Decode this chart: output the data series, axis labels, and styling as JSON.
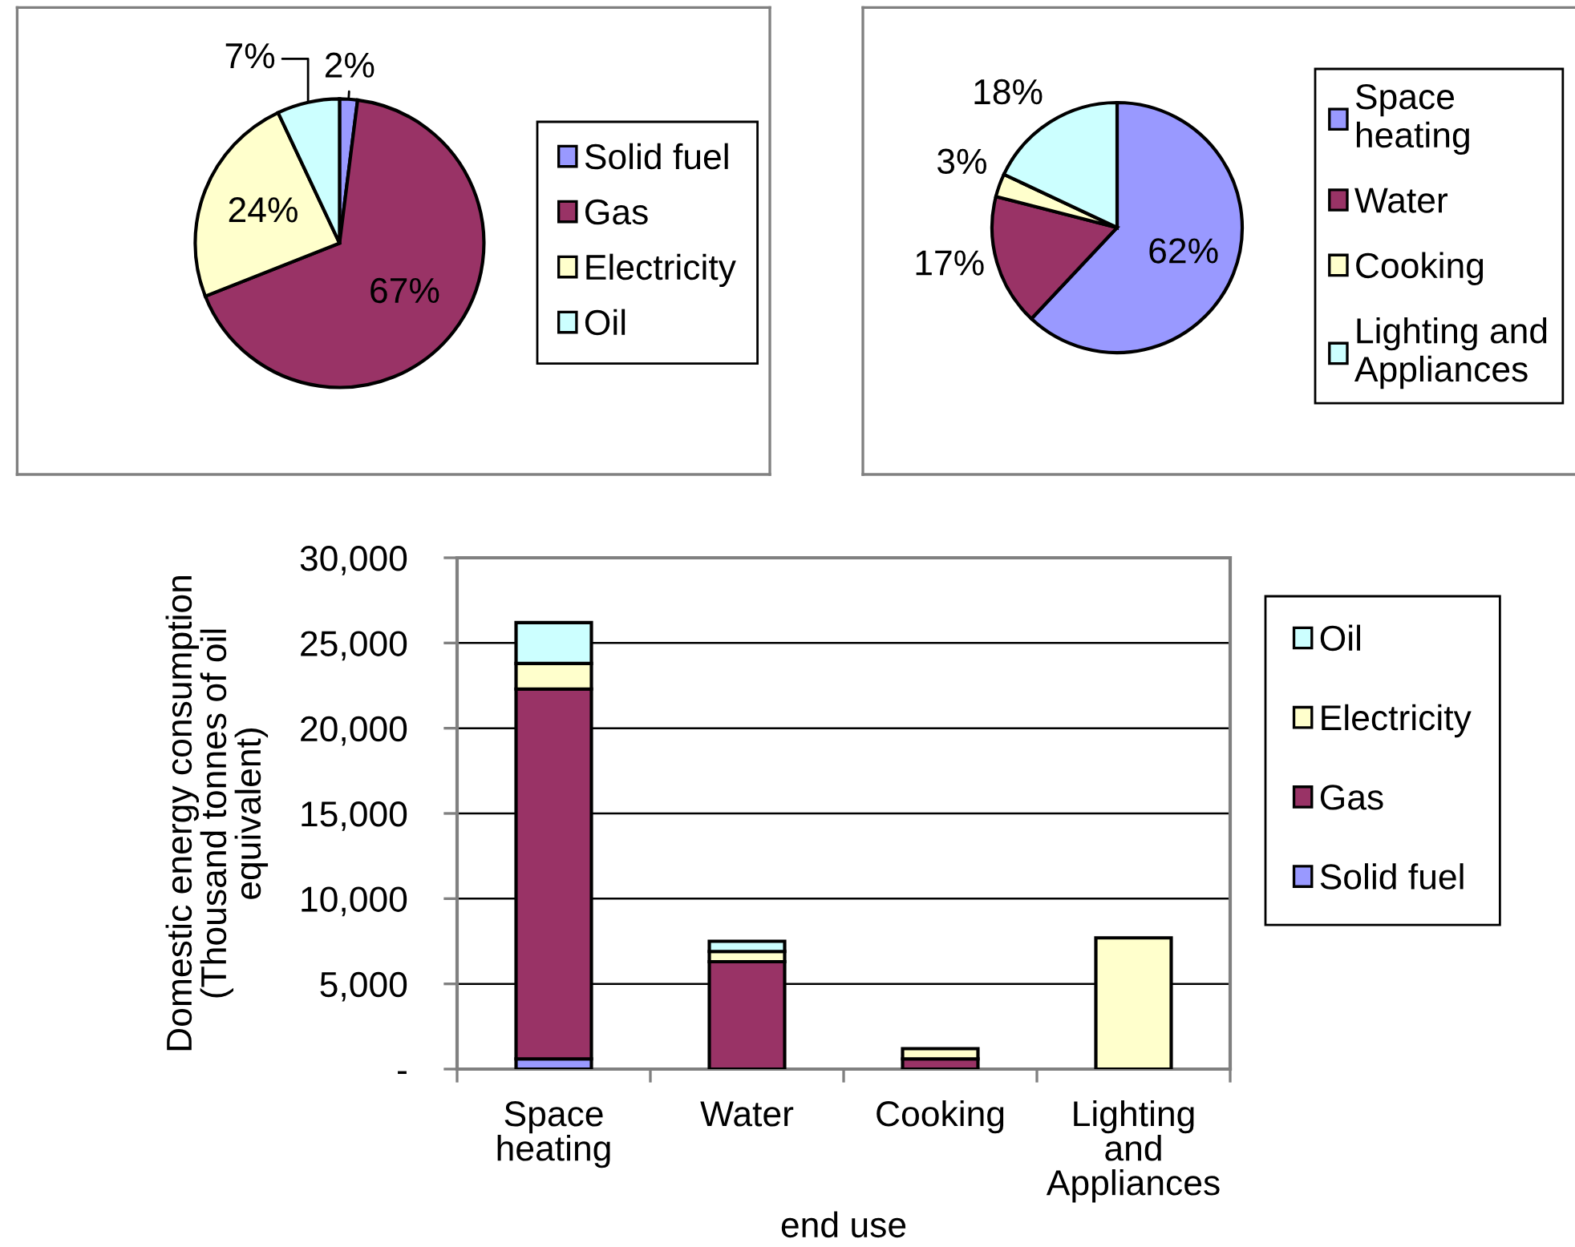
{
  "chart_data": [
    {
      "type": "pie",
      "categories": [
        "Solid fuel",
        "Gas",
        "Electricity",
        "Oil"
      ],
      "values": [
        2,
        67,
        24,
        7
      ],
      "colors": [
        "#9999ff",
        "#993366",
        "#ffffcc",
        "#ccffff"
      ],
      "value_labels": [
        "2%",
        "67%",
        "24%",
        "7%"
      ],
      "legend": "right"
    },
    {
      "type": "pie",
      "categories": [
        "Space heating",
        "Water",
        "Cooking",
        "Lighting and Appliances"
      ],
      "values": [
        62,
        17,
        3,
        18
      ],
      "colors": [
        "#9999ff",
        "#993366",
        "#ffffcc",
        "#ccffff"
      ],
      "value_labels": [
        "62%",
        "17%",
        "3%",
        "18%"
      ],
      "legend": "right"
    },
    {
      "type": "bar",
      "stacked": true,
      "categories": [
        "Space heating",
        "Water",
        "Cooking",
        "Lighting and Appliances"
      ],
      "series": [
        {
          "name": "Solid fuel",
          "color": "#9999ff",
          "values": [
            600,
            null,
            null,
            null
          ]
        },
        {
          "name": "Gas",
          "color": "#993366",
          "values": [
            21700,
            6300,
            600,
            null
          ]
        },
        {
          "name": "Electricity",
          "color": "#ffffcc",
          "values": [
            1500,
            600,
            600,
            7700
          ]
        },
        {
          "name": "Oil",
          "color": "#ccffff",
          "values": [
            2400,
            600,
            null,
            null
          ]
        }
      ],
      "ylim": [
        0,
        30000
      ],
      "yticks": [
        {
          "value": 0,
          "label": "-"
        },
        {
          "value": 5000,
          "label": "5,000"
        },
        {
          "value": 10000,
          "label": "10,000"
        },
        {
          "value": 15000,
          "label": "15,000"
        },
        {
          "value": 20000,
          "label": "20,000"
        },
        {
          "value": 25000,
          "label": "25,000"
        },
        {
          "value": 30000,
          "label": "30,000"
        }
      ],
      "grid": "y",
      "legend": "right",
      "xlabel": "end use",
      "ylabel": "Domestic energy consumption (Thousand tonnes of oil equivalent)"
    }
  ]
}
